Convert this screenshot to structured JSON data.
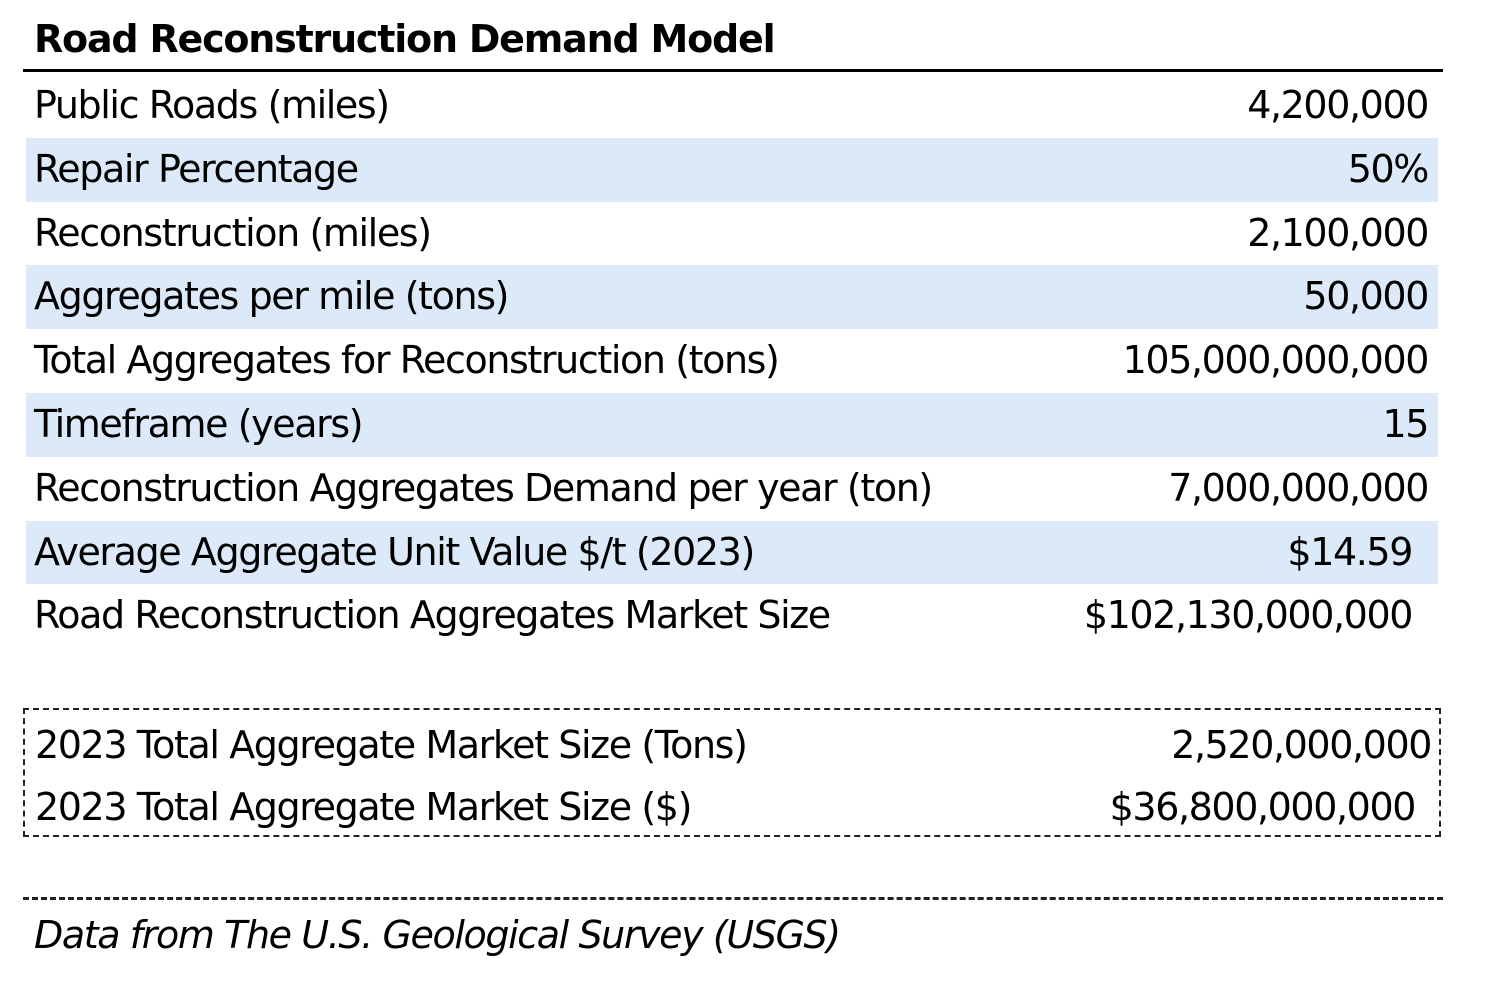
{
  "title": "Road Reconstruction Demand Model",
  "rows": [
    {
      "label": "Public Roads (miles)",
      "value": "4,200,000"
    },
    {
      "label": "Repair Percentage",
      "value": "50%"
    },
    {
      "label": "Reconstruction (miles)",
      "value": "2,100,000"
    },
    {
      "label": "Aggregates per mile (tons)",
      "value": "50,000"
    },
    {
      "label": "Total Aggregates for Reconstruction (tons)",
      "value": "105,000,000,000"
    },
    {
      "label": "Timeframe (years)",
      "value": "15"
    },
    {
      "label": "Reconstruction Aggregates Demand per year (ton)",
      "value": "7,000,000,000"
    },
    {
      "label": "Average Aggregate Unit Value $/t (2023)",
      "value": "$14.59"
    },
    {
      "label": "Road Reconstruction Aggregates Market Size",
      "value": "$102,130,000,000"
    }
  ],
  "market_2023": [
    {
      "label": "2023 Total Aggregate Market Size (Tons)",
      "value": "2,520,000,000"
    },
    {
      "label": "2023 Total Aggregate Market Size ($)",
      "value": "$36,800,000,000"
    }
  ],
  "source_note": "Data from The U.S. Geological Survey (USGS)",
  "colors": {
    "row_shade": "#dce9f8",
    "text": "#000000",
    "rule": "#000000"
  }
}
